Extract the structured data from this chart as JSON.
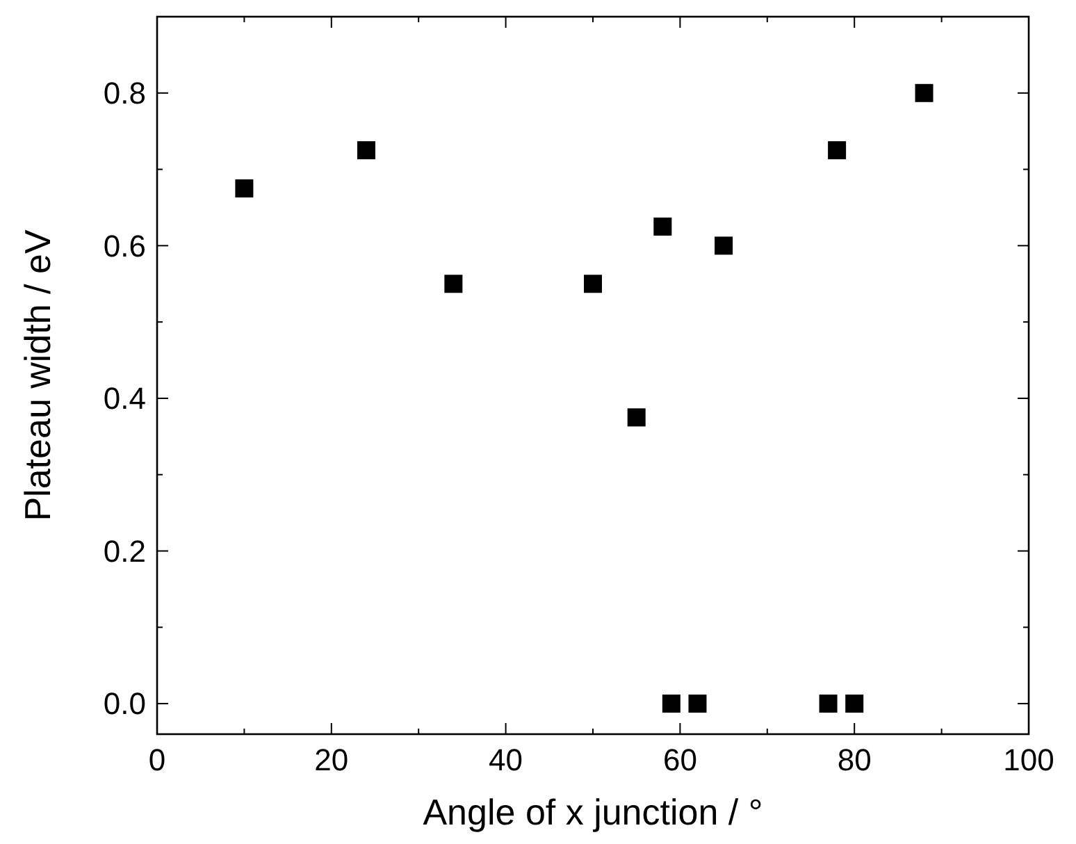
{
  "chart_data": {
    "type": "scatter",
    "xlabel": "Angle of x junction / °",
    "ylabel": "Plateau width / eV",
    "x": [
      10,
      24,
      34,
      50,
      55,
      58,
      59,
      62,
      65,
      77,
      78,
      80,
      88
    ],
    "values": [
      0.675,
      0.725,
      0.55,
      0.55,
      0.375,
      0.625,
      0,
      0,
      0.6,
      0,
      0.725,
      0,
      0.8
    ],
    "color": "#000000",
    "marker": "square",
    "xlim": [
      0,
      100
    ],
    "xticks": [
      0,
      20,
      40,
      60,
      80,
      100
    ],
    "ylim": [
      -0.04,
      0.9
    ],
    "yticks": [
      {
        "value": 0,
        "label": "0.0"
      },
      {
        "value": 0.2,
        "label": "0.2"
      },
      {
        "value": 0.4,
        "label": "0.4"
      },
      {
        "value": 0.6,
        "label": "0.6"
      },
      {
        "value": 0.8,
        "label": "0.8"
      }
    ],
    "grid": false
  }
}
